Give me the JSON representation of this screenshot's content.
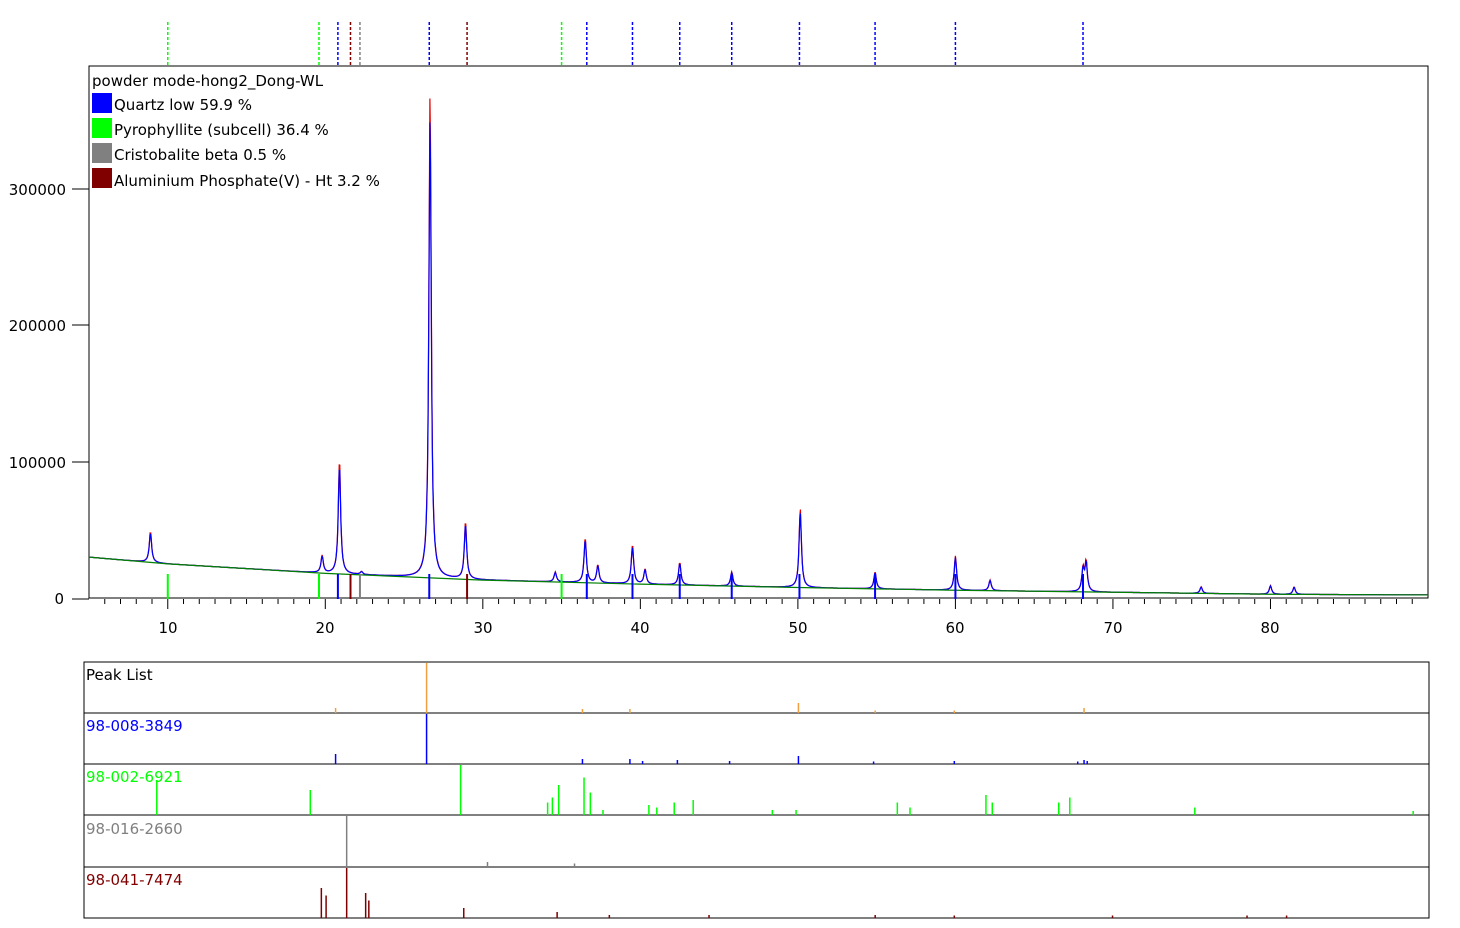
{
  "chart_data": [
    {
      "type": "line",
      "title": "powder mode-hong2_Dong-WL",
      "xlabel": "",
      "ylabel": "",
      "xlim": [
        5,
        90
      ],
      "ylim": [
        0,
        380000
      ],
      "x_ticks": [
        "10",
        "20",
        "30",
        "40",
        "50",
        "60",
        "70",
        "80"
      ],
      "y_ticks": [
        "0",
        "100000",
        "200000",
        "300000"
      ],
      "y_tick_values": [
        0,
        100000,
        200000,
        300000
      ],
      "x_tick_values": [
        10,
        20,
        30,
        40,
        50,
        60,
        70,
        80
      ],
      "grid": false,
      "legend_position": "top-left",
      "legend": [
        {
          "label": "Quartz low 59.9 %",
          "color": "#0000ff"
        },
        {
          "label": "Pyrophyllite (subcell) 36.4 %",
          "color": "#00ff00"
        },
        {
          "label": "Cristobalite beta 0.5 %",
          "color": "#808080"
        },
        {
          "label": "Aluminium Phosphate(V) - Ht 3.2 %",
          "color": "#800000"
        }
      ],
      "background_trend": [
        [
          5,
          31000
        ],
        [
          10,
          26000
        ],
        [
          20,
          19000
        ],
        [
          30,
          14000
        ],
        [
          40,
          11000
        ],
        [
          50,
          8500
        ],
        [
          60,
          6500
        ],
        [
          70,
          5000
        ],
        [
          80,
          3500
        ],
        [
          90,
          3000
        ]
      ],
      "peaks": [
        {
          "x": 8.9,
          "y": 50000
        },
        {
          "x": 19.8,
          "y": 32000
        },
        {
          "x": 20.9,
          "y": 103000
        },
        {
          "x": 22.3,
          "y": 20000
        },
        {
          "x": 26.65,
          "y": 375000
        },
        {
          "x": 28.9,
          "y": 57000
        },
        {
          "x": 34.6,
          "y": 20000
        },
        {
          "x": 36.5,
          "y": 45000
        },
        {
          "x": 37.3,
          "y": 25000
        },
        {
          "x": 39.5,
          "y": 40000
        },
        {
          "x": 40.3,
          "y": 22000
        },
        {
          "x": 42.5,
          "y": 27000
        },
        {
          "x": 45.8,
          "y": 20000
        },
        {
          "x": 50.15,
          "y": 67000
        },
        {
          "x": 54.9,
          "y": 20000
        },
        {
          "x": 60.0,
          "y": 32000
        },
        {
          "x": 62.2,
          "y": 14000
        },
        {
          "x": 68.1,
          "y": 22000
        },
        {
          "x": 68.3,
          "y": 27000
        },
        {
          "x": 75.6,
          "y": 9000
        },
        {
          "x": 80.0,
          "y": 10000
        },
        {
          "x": 81.5,
          "y": 9000
        }
      ],
      "phase_ticks": [
        {
          "x": 10.0,
          "color": "#00ff00"
        },
        {
          "x": 19.6,
          "color": "#00ff00"
        },
        {
          "x": 20.8,
          "color": "#0000ff"
        },
        {
          "x": 21.6,
          "color": "#800000"
        },
        {
          "x": 22.2,
          "color": "#808080"
        },
        {
          "x": 26.6,
          "color": "#0000ff"
        },
        {
          "x": 29.0,
          "color": "#800000"
        },
        {
          "x": 35.0,
          "color": "#00ff00"
        },
        {
          "x": 36.6,
          "color": "#0000ff"
        },
        {
          "x": 39.5,
          "color": "#0000ff"
        },
        {
          "x": 42.5,
          "color": "#0000ff"
        },
        {
          "x": 45.8,
          "color": "#0000ff"
        },
        {
          "x": 50.1,
          "color": "#0000ff"
        },
        {
          "x": 54.9,
          "color": "#0000ff"
        },
        {
          "x": 60.0,
          "color": "#0000ff"
        },
        {
          "x": 68.1,
          "color": "#0000ff"
        }
      ]
    },
    {
      "type": "bar",
      "panels": [
        {
          "label": "Peak List",
          "color": "#f0a040",
          "sticks": [
            [
              26.65,
              1.0
            ],
            [
              20.9,
              0.1
            ],
            [
              36.5,
              0.08
            ],
            [
              39.5,
              0.08
            ],
            [
              50.15,
              0.2
            ],
            [
              68.2,
              0.1
            ],
            [
              60.0,
              0.05
            ],
            [
              55.0,
              0.05
            ]
          ]
        },
        {
          "label": "98-008-3849",
          "color": "#0000ff",
          "sticks": [
            [
              20.9,
              0.2
            ],
            [
              26.65,
              1.0
            ],
            [
              36.5,
              0.1
            ],
            [
              39.5,
              0.1
            ],
            [
              40.3,
              0.06
            ],
            [
              42.5,
              0.08
            ],
            [
              45.8,
              0.06
            ],
            [
              50.15,
              0.16
            ],
            [
              54.9,
              0.05
            ],
            [
              60.0,
              0.06
            ],
            [
              67.8,
              0.05
            ],
            [
              68.2,
              0.08
            ],
            [
              68.4,
              0.06
            ]
          ]
        },
        {
          "label": "98-002-6921",
          "color": "#00ff00",
          "sticks": [
            [
              9.6,
              0.7
            ],
            [
              19.3,
              0.5
            ],
            [
              28.8,
              1.0
            ],
            [
              34.3,
              0.25
            ],
            [
              34.6,
              0.35
            ],
            [
              35.0,
              0.6
            ],
            [
              36.6,
              0.75
            ],
            [
              37.0,
              0.45
            ],
            [
              37.8,
              0.1
            ],
            [
              40.7,
              0.2
            ],
            [
              41.2,
              0.15
            ],
            [
              42.3,
              0.25
            ],
            [
              43.5,
              0.3
            ],
            [
              48.5,
              0.1
            ],
            [
              50.0,
              0.1
            ],
            [
              56.4,
              0.25
            ],
            [
              57.2,
              0.15
            ],
            [
              62.0,
              0.4
            ],
            [
              62.4,
              0.25
            ],
            [
              66.6,
              0.25
            ],
            [
              67.3,
              0.35
            ],
            [
              75.2,
              0.15
            ],
            [
              89.0,
              0.08
            ]
          ]
        },
        {
          "label": "98-016-2660",
          "color": "#808080",
          "sticks": [
            [
              21.6,
              1.0
            ],
            [
              30.5,
              0.08
            ],
            [
              36.0,
              0.05
            ]
          ]
        },
        {
          "label": "98-041-7474",
          "color": "#800000",
          "sticks": [
            [
              20.0,
              0.6
            ],
            [
              20.3,
              0.45
            ],
            [
              21.6,
              1.0
            ],
            [
              22.8,
              0.5
            ],
            [
              23.0,
              0.35
            ],
            [
              29.0,
              0.2
            ],
            [
              34.9,
              0.12
            ],
            [
              38.2,
              0.06
            ],
            [
              44.5,
              0.06
            ],
            [
              55.0,
              0.06
            ],
            [
              60.0,
              0.05
            ],
            [
              70.0,
              0.05
            ],
            [
              78.5,
              0.05
            ],
            [
              81.0,
              0.05
            ]
          ]
        }
      ]
    }
  ]
}
